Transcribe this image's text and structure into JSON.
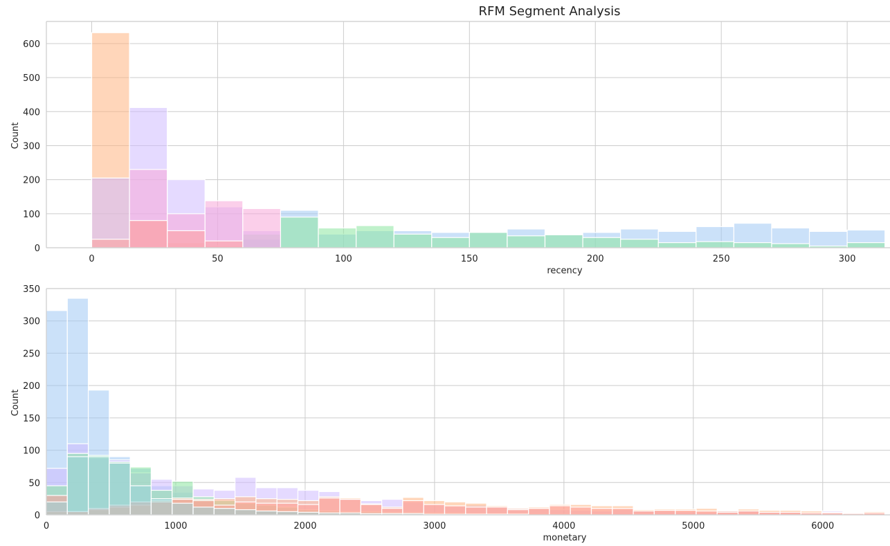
{
  "figure": {
    "title": "RFM Segment Analysis"
  },
  "colors": {
    "blue": "#a1c9f4",
    "orange": "#ffb482",
    "green": "#8de5a1",
    "red": "#ff9f9b",
    "purple": "#d0bbff",
    "pink": "#f7a8d8",
    "teal": "#9bd3d8"
  },
  "chart_data": [
    {
      "type": "histogram",
      "title": "RFM Segment Analysis",
      "xlabel": "recency",
      "ylabel": "Count",
      "xlim": [
        -18,
        317
      ],
      "ylim": [
        0,
        665
      ],
      "xticks": [
        0,
        50,
        100,
        150,
        200,
        250,
        300
      ],
      "yticks": [
        0,
        100,
        200,
        300,
        400,
        500,
        600
      ],
      "grid": true,
      "bin_width": 15,
      "bin_edges": [
        0,
        15,
        30,
        45,
        60,
        75,
        90,
        105,
        120,
        135,
        150,
        165,
        180,
        195,
        210,
        225,
        240,
        255,
        270,
        285,
        300,
        315
      ],
      "series": [
        {
          "color": "blue",
          "values": [
            0,
            0,
            0,
            0,
            25,
            110,
            40,
            50,
            50,
            45,
            45,
            55,
            40,
            45,
            55,
            48,
            62,
            72,
            58,
            48,
            52
          ]
        },
        {
          "color": "green",
          "values": [
            0,
            0,
            0,
            0,
            40,
            90,
            58,
            65,
            40,
            30,
            45,
            35,
            38,
            30,
            25,
            15,
            18,
            15,
            12,
            5,
            15
          ]
        },
        {
          "color": "orange",
          "values": [
            632,
            80,
            15,
            5,
            0,
            0,
            0,
            0,
            0,
            0,
            0,
            0,
            0,
            0,
            0,
            0,
            0,
            0,
            0,
            0,
            0
          ]
        },
        {
          "color": "purple",
          "values": [
            205,
            412,
            200,
            120,
            50,
            0,
            0,
            0,
            0,
            0,
            0,
            0,
            0,
            0,
            0,
            0,
            0,
            0,
            0,
            0,
            0
          ]
        },
        {
          "color": "pink",
          "values": [
            0,
            230,
            100,
            138,
            115,
            0,
            0,
            0,
            0,
            0,
            0,
            0,
            0,
            0,
            0,
            0,
            0,
            0,
            0,
            0,
            0
          ]
        },
        {
          "color": "red",
          "values": [
            25,
            80,
            50,
            20,
            0,
            0,
            0,
            0,
            0,
            0,
            0,
            0,
            0,
            0,
            0,
            0,
            0,
            0,
            0,
            0,
            0
          ]
        }
      ]
    },
    {
      "type": "histogram",
      "xlabel": "monetary",
      "ylabel": "Count",
      "xlim": [
        0,
        6520
      ],
      "ylim": [
        0,
        350
      ],
      "xticks": [
        0,
        1000,
        2000,
        3000,
        4000,
        5000,
        6000
      ],
      "yticks": [
        0,
        50,
        100,
        150,
        200,
        250,
        300,
        350
      ],
      "grid": true,
      "bin_width": 162,
      "series": [
        {
          "color": "blue",
          "values": [
            316,
            335,
            193,
            90,
            72,
            45,
            35,
            25,
            12,
            8,
            5,
            5,
            3,
            2,
            2,
            2,
            1,
            1,
            1,
            1,
            1,
            1,
            1,
            0,
            0,
            0,
            0,
            0,
            0,
            0,
            0,
            0,
            0,
            0,
            0,
            0,
            0,
            0,
            0,
            0
          ]
        },
        {
          "color": "purple",
          "values": [
            72,
            110,
            88,
            85,
            65,
            55,
            45,
            40,
            38,
            58,
            42,
            42,
            38,
            36,
            25,
            22,
            24,
            20,
            16,
            13,
            15,
            13,
            10,
            9,
            8,
            7,
            6,
            8,
            7,
            6,
            5,
            4,
            6,
            6,
            4,
            4,
            3,
            6,
            2,
            2
          ]
        },
        {
          "color": "green",
          "values": [
            45,
            95,
            92,
            82,
            74,
            38,
            52,
            28,
            22,
            18,
            15,
            12,
            8,
            6,
            5,
            5,
            4,
            4,
            3,
            3,
            2,
            2,
            2,
            1,
            1,
            1,
            1,
            0,
            0,
            0,
            0,
            0,
            0,
            0,
            0,
            0,
            0,
            0,
            0,
            0
          ]
        },
        {
          "color": "orange",
          "values": [
            5,
            5,
            8,
            12,
            15,
            22,
            26,
            24,
            25,
            28,
            25,
            24,
            22,
            28,
            26,
            17,
            12,
            27,
            22,
            20,
            18,
            14,
            10,
            12,
            16,
            16,
            14,
            14,
            8,
            9,
            9,
            10,
            6,
            9,
            7,
            7,
            6,
            4,
            3,
            5
          ]
        },
        {
          "color": "red",
          "values": [
            30,
            5,
            10,
            15,
            20,
            20,
            24,
            22,
            15,
            20,
            18,
            18,
            16,
            26,
            24,
            16,
            10,
            22,
            16,
            14,
            12,
            12,
            8,
            10,
            14,
            12,
            10,
            10,
            6,
            7,
            7,
            6,
            4,
            6,
            4,
            4,
            3,
            3,
            2,
            3
          ]
        },
        {
          "color": "teal",
          "values": [
            20,
            90,
            90,
            80,
            45,
            25,
            18,
            12,
            10,
            8,
            6,
            5,
            4,
            3,
            3,
            2,
            2,
            2,
            1,
            1,
            1,
            1,
            1,
            0,
            0,
            0,
            0,
            0,
            0,
            0,
            0,
            0,
            0,
            0,
            0,
            0,
            0,
            0,
            0,
            0
          ]
        }
      ]
    }
  ]
}
